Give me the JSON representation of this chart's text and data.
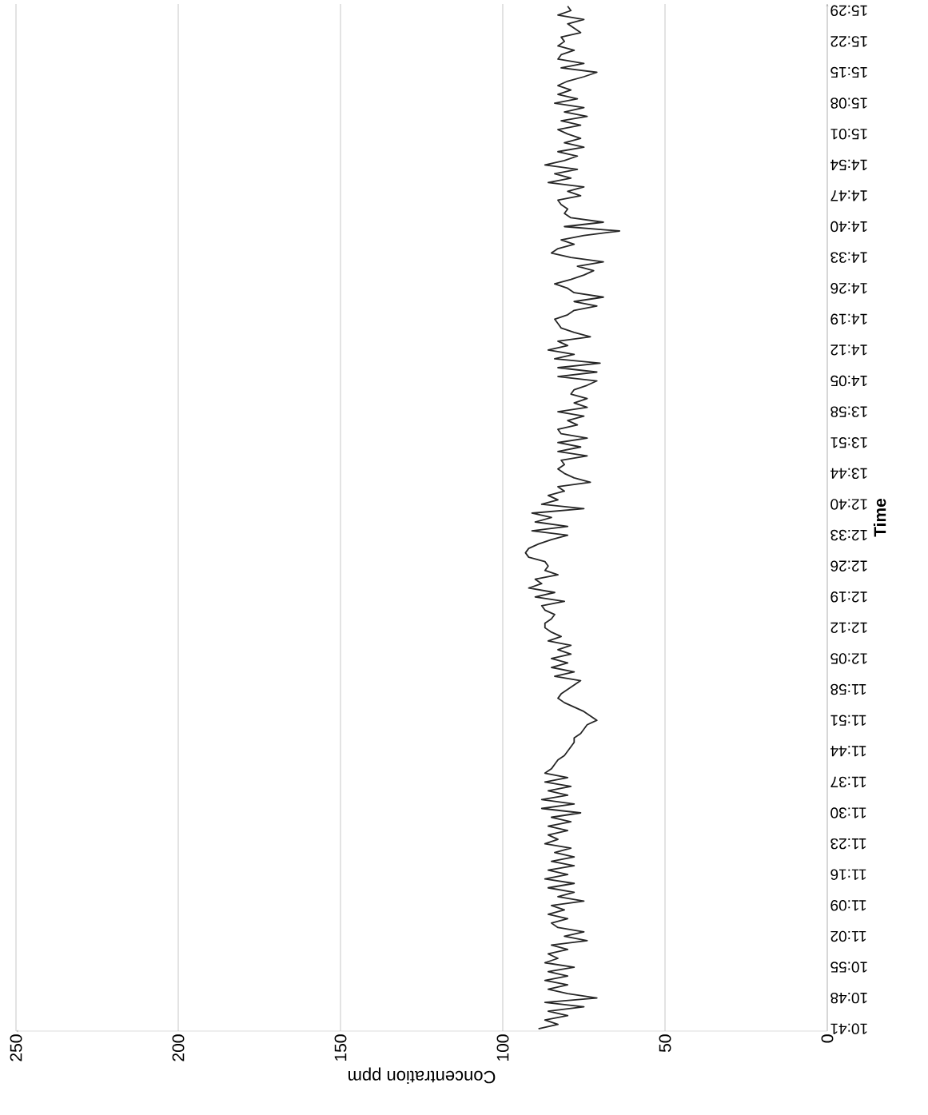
{
  "chart_data": {
    "type": "line",
    "orientation": "horizontal",
    "xlabel": "Concentration ppm",
    "ylabel": "Time",
    "categories": [
      null,
      "15:29",
      null,
      null,
      null,
      null,
      null,
      null,
      "15:22",
      null,
      null,
      null,
      null,
      null,
      null,
      "15:15",
      null,
      null,
      null,
      null,
      null,
      null,
      "15:08",
      null,
      null,
      null,
      null,
      null,
      null,
      "15:01",
      null,
      null,
      null,
      null,
      null,
      null,
      "14:54",
      null,
      null,
      null,
      null,
      null,
      null,
      "14:47",
      null,
      null,
      null,
      null,
      null,
      null,
      "14:40",
      null,
      null,
      null,
      null,
      null,
      null,
      "14:33",
      null,
      null,
      null,
      null,
      null,
      null,
      "14:26",
      null,
      null,
      null,
      null,
      null,
      null,
      "14:19",
      null,
      null,
      null,
      null,
      null,
      null,
      "14:12",
      null,
      null,
      null,
      null,
      null,
      null,
      "14:05",
      null,
      null,
      null,
      null,
      null,
      null,
      "13:58",
      null,
      null,
      null,
      null,
      null,
      null,
      "13:51",
      null,
      null,
      null,
      null,
      null,
      null,
      "13:44",
      null,
      null,
      null,
      null,
      null,
      null,
      "12:40",
      null,
      null,
      null,
      null,
      null,
      null,
      "12:33",
      null,
      null,
      null,
      null,
      null,
      null,
      "12:26",
      null,
      null,
      null,
      null,
      null,
      null,
      "12:19",
      null,
      null,
      null,
      null,
      null,
      null,
      "12:12",
      null,
      null,
      null,
      null,
      null,
      null,
      "12:05",
      null,
      null,
      null,
      null,
      null,
      null,
      "11:58",
      null,
      null,
      null,
      null,
      null,
      null,
      "11:51",
      null,
      null,
      null,
      null,
      null,
      null,
      "11:44",
      null,
      null,
      null,
      null,
      null,
      null,
      "11:37",
      null,
      null,
      null,
      null,
      null,
      null,
      "11:30",
      null,
      null,
      null,
      null,
      null,
      null,
      "11:23",
      null,
      null,
      null,
      null,
      null,
      null,
      "11:16",
      null,
      null,
      null,
      null,
      null,
      null,
      "11:09",
      null,
      null,
      null,
      null,
      null,
      null,
      "11:02",
      null,
      null,
      null,
      null,
      null,
      null,
      "10:55",
      null,
      null,
      null,
      null,
      null,
      null,
      "10:48",
      null,
      null,
      null,
      null,
      null,
      null,
      "10:41"
    ],
    "values": [
      80,
      79,
      83,
      75,
      80,
      78,
      76,
      82,
      81,
      83,
      78,
      82,
      83,
      75,
      82,
      71,
      75,
      80,
      83,
      79,
      83,
      77,
      84,
      75,
      81,
      74,
      82,
      76,
      83,
      80,
      76,
      81,
      75,
      83,
      77,
      81,
      87,
      77,
      84,
      79,
      86,
      75,
      80,
      76,
      83,
      82,
      80,
      81,
      79,
      69,
      81,
      64,
      75,
      82,
      78,
      83,
      85,
      79,
      69,
      77,
      72,
      75,
      79,
      84,
      80,
      78,
      69,
      78,
      71,
      78,
      80,
      84,
      83,
      82,
      78,
      73,
      83,
      80,
      86,
      78,
      84,
      70,
      83,
      71,
      83,
      71,
      74,
      78,
      79,
      74,
      78,
      74,
      83,
      75,
      80,
      77,
      83,
      82,
      74,
      83,
      76,
      83,
      74,
      82,
      81,
      83,
      81,
      78,
      73,
      83,
      81,
      86,
      83,
      88,
      75,
      91,
      85,
      90,
      80,
      91,
      80,
      85,
      89,
      92,
      93,
      92,
      87,
      86,
      87,
      83,
      90,
      88,
      92,
      84,
      90,
      81,
      88,
      87,
      84,
      85,
      87,
      87,
      85,
      82,
      86,
      79,
      83,
      79,
      85,
      80,
      85,
      78,
      84,
      76,
      78,
      80,
      82,
      83,
      81,
      78,
      75,
      73,
      71,
      74,
      75,
      76,
      78,
      78,
      79,
      80,
      81,
      83,
      84,
      85,
      87,
      80,
      87,
      79,
      86,
      80,
      88,
      78,
      88,
      76,
      85,
      79,
      86,
      80,
      86,
      83,
      87,
      79,
      84,
      78,
      85,
      78,
      86,
      80,
      87,
      78,
      86,
      78,
      83,
      75,
      85,
      81,
      86,
      80,
      85,
      83,
      75,
      81,
      74,
      85,
      80,
      86,
      83,
      87,
      78,
      86,
      80,
      87,
      80,
      86,
      80,
      71,
      87,
      75,
      86,
      80,
      87,
      83,
      89
    ],
    "color": "#262626",
    "line_style": "solid",
    "marker": "none",
    "xlim": [
      250,
      0
    ],
    "xticks": [
      0,
      50,
      100,
      150,
      200,
      250
    ],
    "grid": "x"
  }
}
